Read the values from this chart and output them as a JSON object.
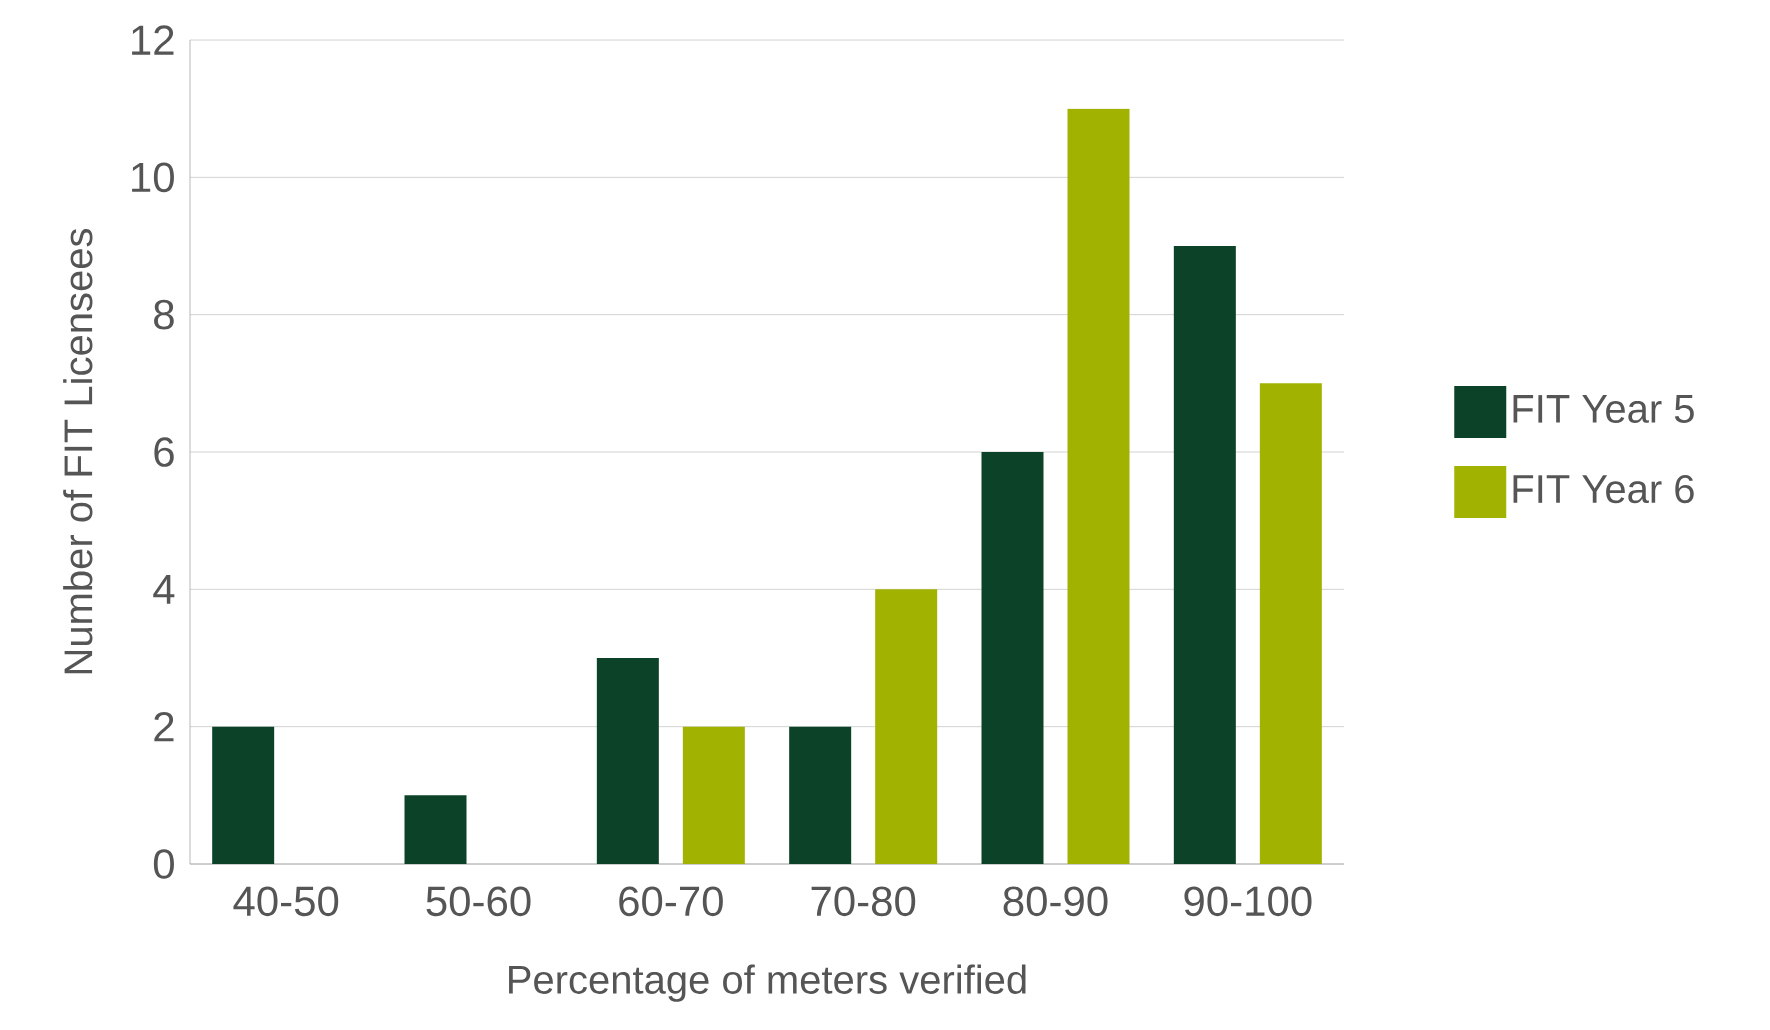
{
  "chart_data": {
    "type": "bar",
    "xlabel": "Percentage of meters verified",
    "ylabel": "Number of FIT Licensees",
    "categories": [
      "40-50",
      "50-60",
      "60-70",
      "70-80",
      "80-90",
      "90-100"
    ],
    "series": [
      {
        "name": "FIT Year 5",
        "color": "#0b4228",
        "values": [
          2,
          1,
          3,
          2,
          6,
          9
        ]
      },
      {
        "name": "FIT Year 6",
        "color": "#a2b200",
        "values": [
          0,
          0,
          2,
          4,
          11,
          7
        ]
      }
    ],
    "ylim": [
      0,
      12
    ],
    "yticks": [
      0,
      2,
      4,
      6,
      8,
      10,
      12
    ],
    "grid": "y",
    "legend": "right"
  }
}
